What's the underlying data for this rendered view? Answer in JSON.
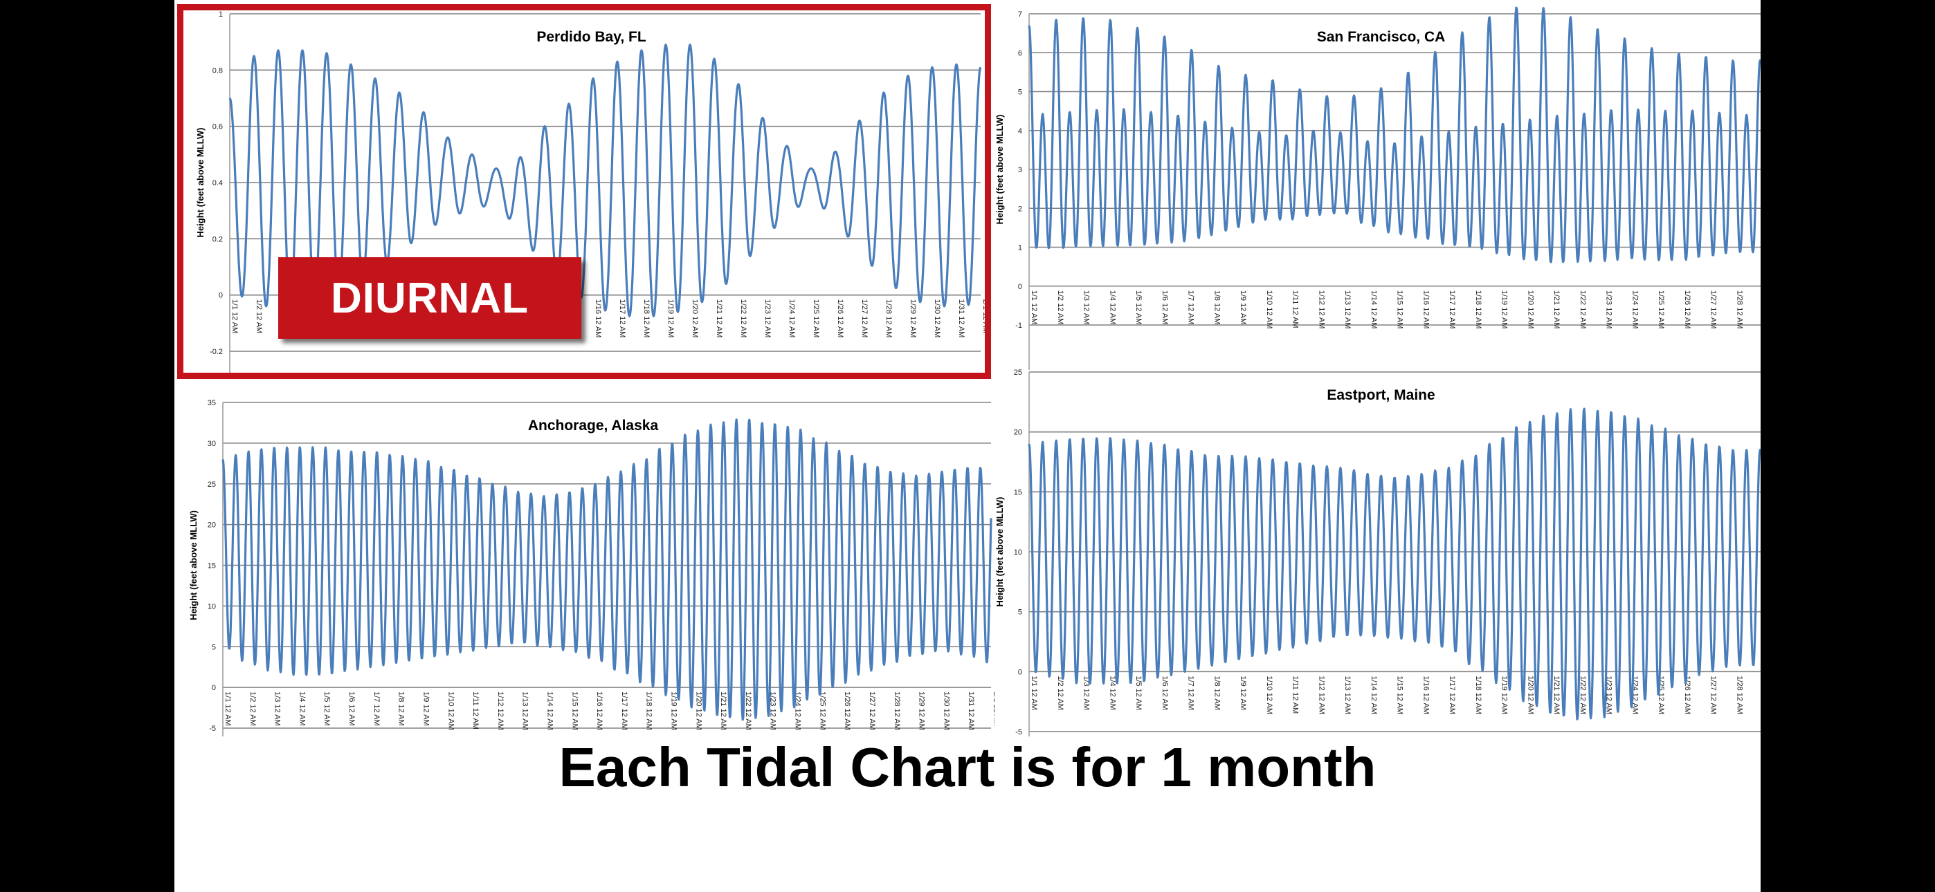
{
  "caption": "Each Tidal Chart is for 1 month",
  "highlight_label": "DIURNAL",
  "colors": {
    "line": "#4a7ebb",
    "highlight": "#c4141b",
    "grid": "#808080"
  },
  "chart_data": [
    {
      "id": "perdido",
      "type": "line",
      "title": "Perdido Bay, FL",
      "ylabel": "Height (feet above MLLW)",
      "ylim": [
        -0.2,
        1
      ],
      "yticks": [
        -0.2,
        0,
        0.2,
        0.4,
        0.6,
        0.8,
        1
      ],
      "xticks": [
        "1/1 12 AM",
        "1/2 12 AM",
        "1/3 12 AM",
        "1/4 12 AM",
        "1/5 12 AM",
        "1/6 12 AM",
        "1/7 12 AM",
        "1/8 12 AM",
        "1/9 12 AM",
        "1/10 12 AM",
        "1/11 12 AM",
        "1/12 12 AM",
        "1/13 12 AM",
        "1/14 12 AM",
        "1/15 12 AM",
        "1/16 12 AM",
        "1/17 12 AM",
        "1/18 12 AM",
        "1/19 12 AM",
        "1/20 12 AM",
        "1/21 12 AM",
        "1/22 12 AM",
        "1/23 12 AM",
        "1/24 12 AM",
        "1/25 12 AM",
        "1/26 12 AM",
        "1/27 12 AM",
        "1/28 12 AM",
        "1/29 12 AM",
        "1/30 12 AM",
        "1/31 12 AM",
        "2/1 12 AM"
      ],
      "series": [
        {
          "pattern": "diurnal",
          "days": 31,
          "high": [
            0.7,
            0.85,
            0.87,
            0.87,
            0.86,
            0.82,
            0.77,
            0.72,
            0.65,
            0.56,
            0.5,
            0.45,
            0.49,
            0.6,
            0.68,
            0.77,
            0.83,
            0.87,
            0.89,
            0.89,
            0.84,
            0.75,
            0.63,
            0.53,
            0.45,
            0.51,
            0.62,
            0.72,
            0.78,
            0.81,
            0.82,
            0.81
          ],
          "low": [
            0.02,
            -0.03,
            -0.05,
            -0.04,
            -0.02,
            0.02,
            0.08,
            0.15,
            0.22,
            0.28,
            0.3,
            0.33,
            0.22,
            0.1,
            0.02,
            -0.04,
            -0.07,
            -0.08,
            -0.07,
            -0.05,
            0.0,
            0.08,
            0.2,
            0.28,
            0.35,
            0.27,
            0.15,
            0.06,
            -0.01,
            -0.04,
            -0.04,
            -0.03
          ]
        }
      ]
    },
    {
      "id": "sf",
      "type": "line",
      "title": "San Francisco, CA",
      "ylabel": "Height (feet above MLLW)",
      "ylim": [
        -1,
        7
      ],
      "yticks": [
        -1,
        0,
        1,
        2,
        3,
        4,
        5,
        6,
        7
      ],
      "xticks": [
        "1/1 12 AM",
        "1/2 12 AM",
        "1/3 12 AM",
        "1/4 12 AM",
        "1/5 12 AM",
        "1/6 12 AM",
        "1/7 12 AM",
        "1/8 12 AM",
        "1/9 12 AM",
        "1/10 12 AM",
        "1/11 12 AM",
        "1/12 12 AM",
        "1/13 12 AM",
        "1/14 12 AM",
        "1/15 12 AM",
        "1/16 12 AM",
        "1/17 12 AM",
        "1/18 12 AM",
        "1/19 12 AM",
        "1/20 12 AM",
        "1/21 12 AM",
        "1/22 12 AM",
        "1/23 12 AM",
        "1/24 12 AM",
        "1/25 12 AM",
        "1/26 12 AM",
        "1/27 12 AM",
        "1/28 12 AM"
      ],
      "series": [
        {
          "pattern": "mixed",
          "days": 28,
          "hh": [
            6.5,
            6.5,
            6.5,
            6.4,
            6.2,
            6.0,
            5.7,
            5.3,
            5.1,
            5.1,
            5.0,
            5.0,
            5.2,
            5.4,
            5.6,
            6.0,
            6.3,
            6.6,
            6.8,
            6.9,
            6.7,
            6.4,
            6.1,
            6.0,
            6.0,
            6.1,
            6.2,
            6.2
          ],
          "ll": [
            -0.3,
            -0.5,
            -0.5,
            -0.5,
            -0.4,
            -0.3,
            -0.1,
            0.2,
            0.5,
            0.8,
            1.0,
            1.5,
            1.8,
            1.4,
            1.0,
            0.6,
            0.1,
            -0.3,
            -0.7,
            -1.0,
            -1.1,
            -1.0,
            -0.8,
            -0.5,
            -0.2,
            0.1,
            0.4,
            0.6
          ],
          "lh": [
            4.6,
            4.8,
            4.9,
            5.0,
            5.0,
            4.9,
            4.8,
            4.6,
            4.4,
            4.2,
            4.0,
            3.9,
            3.6,
            3.3,
            3.3,
            3.6,
            3.9,
            4.2,
            4.4,
            4.6,
            4.8,
            4.9,
            5.0,
            4.9,
            4.6,
            4.4,
            4.2,
            4.0
          ],
          "hl": [
            2.4,
            2.6,
            2.7,
            2.7,
            2.6,
            2.6,
            2.5,
            2.5,
            2.6,
            2.7,
            2.5,
            2.2,
            2.0,
            1.8,
            1.8,
            2.0,
            2.2,
            2.5,
            2.6,
            2.6,
            2.5,
            2.4,
            2.2,
            2.0,
            1.6,
            1.3,
            1.2,
            1.2
          ]
        }
      ]
    },
    {
      "id": "anchorage",
      "type": "line",
      "title": "Anchorage, Alaska",
      "ylabel": "Height (feet above MLLW)",
      "ylim": [
        -5,
        35
      ],
      "yticks": [
        -5,
        0,
        5,
        10,
        15,
        20,
        25,
        30,
        35
      ],
      "xticks": [
        "1/1 12 AM",
        "1/2 12 AM",
        "1/3 12 AM",
        "1/4 12 AM",
        "1/5 12 AM",
        "1/6 12 AM",
        "1/7 12 AM",
        "1/8 12 AM",
        "1/9 12 AM",
        "1/10 12 AM",
        "1/11 12 AM",
        "1/12 12 AM",
        "1/13 12 AM",
        "1/14 12 AM",
        "1/15 12 AM",
        "1/16 12 AM",
        "1/17 12 AM",
        "1/18 12 AM",
        "1/19 12 AM",
        "1/20 12 AM",
        "1/21 12 AM",
        "1/22 12 AM",
        "1/23 12 AM",
        "1/24 12 AM",
        "1/25 12 AM",
        "1/26 12 AM",
        "1/27 12 AM",
        "1/28 12 AM",
        "1/29 12 AM",
        "1/30 12 AM",
        "1/31 12 AM",
        "2/1 12 AM"
      ],
      "series": [
        {
          "pattern": "semidiurnal",
          "days": 31,
          "high": [
            28,
            29,
            29.5,
            29.5,
            29.5,
            29,
            29,
            28.5,
            28,
            27,
            26,
            25,
            24,
            23.5,
            24,
            25,
            26.5,
            28,
            30,
            31.5,
            32.5,
            33,
            32.5,
            32,
            30.5,
            29,
            27.5,
            26.5,
            26,
            26.5,
            27,
            27
          ],
          "low": [
            5,
            3,
            2,
            1.5,
            1.5,
            2,
            2.5,
            3,
            3.5,
            4,
            4.5,
            5,
            5.5,
            5,
            4.5,
            3.5,
            2,
            0.5,
            -1,
            -2.5,
            -3.5,
            -4,
            -3.5,
            -2.5,
            -1,
            0.5,
            2,
            3,
            4,
            4.5,
            4,
            3
          ]
        }
      ]
    },
    {
      "id": "eastport",
      "type": "line",
      "title": "Eastport, Maine",
      "ylabel": "Height (feet above MLLW)",
      "ylim": [
        -5,
        25
      ],
      "yticks": [
        -5,
        0,
        5,
        10,
        15,
        20,
        25
      ],
      "xticks": [
        "1/1 12 AM",
        "1/2 12 AM",
        "1/3 12 AM",
        "1/4 12 AM",
        "1/5 12 AM",
        "1/6 12 AM",
        "1/7 12 AM",
        "1/8 12 AM",
        "1/9 12 AM",
        "1/10 12 AM",
        "1/11 12 AM",
        "1/12 12 AM",
        "1/13 12 AM",
        "1/14 12 AM",
        "1/15 12 AM",
        "1/16 12 AM",
        "1/17 12 AM",
        "1/18 12 AM",
        "1/19 12 AM",
        "1/20 12 AM",
        "1/21 12 AM",
        "1/22 12 AM",
        "1/23 12 AM",
        "1/24 12 AM",
        "1/25 12 AM",
        "1/26 12 AM",
        "1/27 12 AM",
        "1/28 12 AM"
      ],
      "series": [
        {
          "pattern": "semidiurnal",
          "days": 28,
          "high": [
            19,
            19.3,
            19.5,
            19.5,
            19.3,
            19,
            18.5,
            18,
            18,
            17.8,
            17.5,
            17.2,
            17,
            16.5,
            16.2,
            16.5,
            17,
            18,
            19.5,
            20.8,
            21.5,
            22,
            21.8,
            21.3,
            20.5,
            19.7,
            19,
            18.5
          ],
          "low": [
            0,
            -0.5,
            -1,
            -1,
            -1,
            -0.5,
            0,
            0.5,
            1,
            1.5,
            2,
            2.5,
            3,
            3,
            2.8,
            2.5,
            2,
            0.5,
            -1,
            -2.5,
            -3.5,
            -4,
            -3.8,
            -3,
            -2,
            -1,
            0,
            0.5
          ]
        }
      ]
    }
  ]
}
